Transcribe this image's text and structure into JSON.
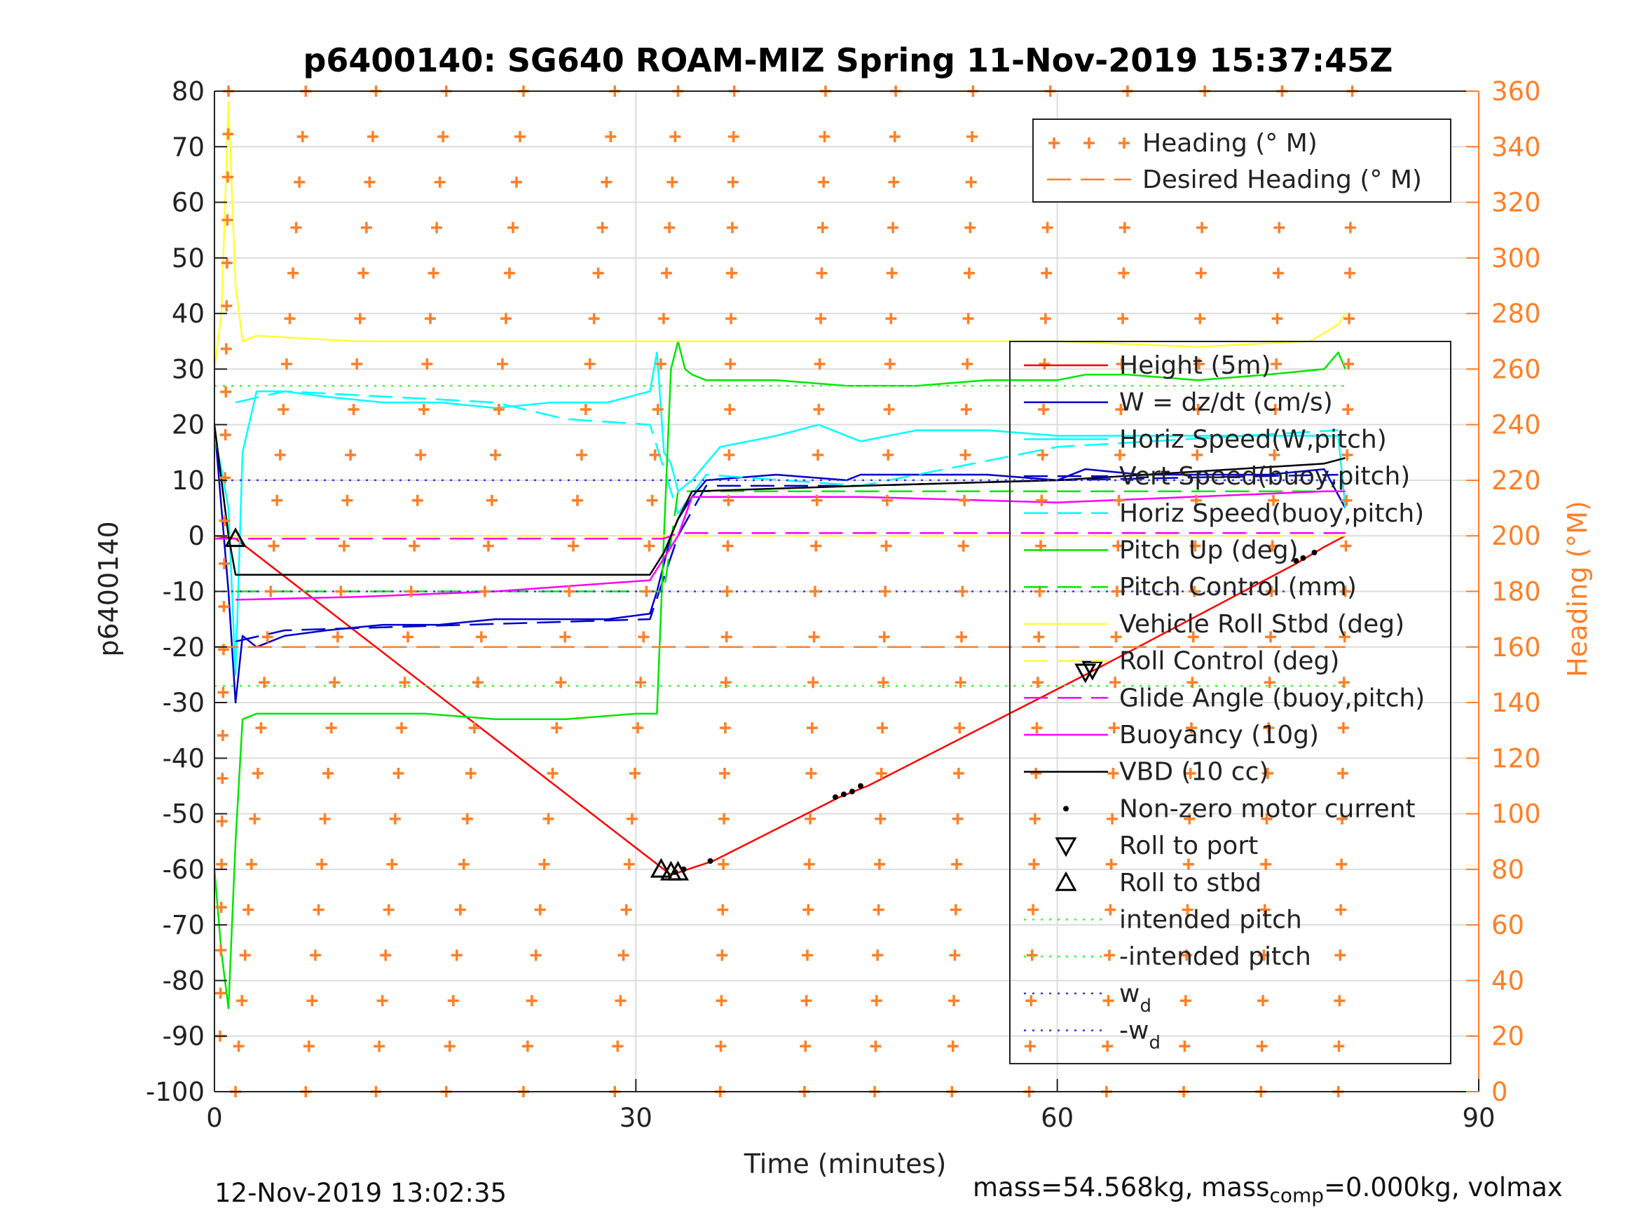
{
  "chart_data": {
    "type": "line",
    "title": "p6400140: SG640 ROAM-MIZ Spring 11-Nov-2019 15:37:45Z",
    "xlabel": "Time (minutes)",
    "ylabel": "p6400140",
    "ylabel_right": "Heading (°M)",
    "xlim": [
      0,
      90
    ],
    "ylim": [
      -100,
      80
    ],
    "ylim_right": [
      0,
      360
    ],
    "xticks": [
      0,
      30,
      60,
      90
    ],
    "yticks": [
      80,
      70,
      60,
      50,
      40,
      30,
      20,
      10,
      0,
      -10,
      -20,
      -30,
      -40,
      -50,
      -60,
      -70,
      -80,
      -90,
      -100
    ],
    "yticks_right": [
      360,
      340,
      320,
      300,
      280,
      260,
      240,
      220,
      200,
      180,
      160,
      140,
      120,
      100,
      80,
      60,
      40,
      20,
      0
    ],
    "grid": true,
    "heading_legend": {
      "placement": "top-right",
      "entries": [
        {
          "name": "Heading (° M)",
          "color": "#FF7F27",
          "marker": "+"
        },
        {
          "name": "Desired Heading (° M)",
          "color": "#FF7F27",
          "style": "dashed"
        }
      ]
    },
    "legend": {
      "placement": "right",
      "entries": [
        {
          "name": "Height (5m)",
          "color": "#FF0000",
          "style": "solid"
        },
        {
          "name": "W = dz/dt (cm/s)",
          "color": "#0000CC",
          "style": "solid"
        },
        {
          "name": "Horiz Speed(W,pitch)",
          "color": "#00FFFF",
          "style": "solid"
        },
        {
          "name": "Vert Speed(buoy,pitch)",
          "color": "#0000CC",
          "style": "dashed"
        },
        {
          "name": "Horiz Speed(buoy,pitch)",
          "color": "#00FFFF",
          "style": "dashed"
        },
        {
          "name": "Pitch Up (deg)",
          "color": "#00E600",
          "style": "solid"
        },
        {
          "name": "Pitch Control (mm)",
          "color": "#00E600",
          "style": "dashed"
        },
        {
          "name": "Vehicle Roll Stbd (deg)",
          "color": "#FFFF33",
          "style": "solid"
        },
        {
          "name": "Roll Control (deg)",
          "color": "#FFFF33",
          "style": "dashed"
        },
        {
          "name": "Glide Angle (buoy,pitch)",
          "color": "#FF00FF",
          "style": "dashed"
        },
        {
          "name": "Buoyancy (10g)",
          "color": "#FF00FF",
          "style": "solid"
        },
        {
          "name": "VBD (10 cc)",
          "color": "#000000",
          "style": "solid"
        },
        {
          "name": "Non-zero motor current",
          "color": "#000000",
          "style": "dot"
        },
        {
          "name": "Roll to port",
          "color": "#000000",
          "style": "tri-down"
        },
        {
          "name": "Roll to stbd",
          "color": "#000000",
          "style": "tri-up"
        },
        {
          "name": "intended pitch",
          "color": "#33FF33",
          "style": "dotted"
        },
        {
          "name": "-intended pitch",
          "color": "#33FF33",
          "style": "dotted"
        },
        {
          "name": "w",
          "sub": "d",
          "color": "#3333FF",
          "style": "dotted"
        },
        {
          "name": "-w",
          "sub": "d",
          "color": "#3333FF",
          "style": "dotted"
        }
      ]
    },
    "series": [
      {
        "name": "Height (5m)",
        "color": "#FF0000",
        "x": [
          0,
          1.5,
          32.5,
          35.5,
          44.5,
          46.5,
          62,
          77,
          79,
          80.5
        ],
        "y": [
          0,
          -0.5,
          -61,
          -58.5,
          -47,
          -45,
          -25,
          -5,
          -2,
          0
        ]
      },
      {
        "name": "W = dz/dt (cm/s)",
        "color": "#0000CC",
        "x": [
          0,
          0.5,
          1,
          1.5,
          2,
          3,
          5,
          8,
          12,
          16,
          20,
          24,
          28,
          31,
          31.5,
          32,
          32.5,
          33,
          34,
          35,
          40,
          45,
          46,
          50,
          55,
          60,
          62,
          66,
          70,
          75,
          79,
          80.5
        ],
        "y": [
          20,
          5,
          -10,
          -30,
          -18,
          -20,
          -18,
          -17,
          -16,
          -16,
          -15,
          -15,
          -15,
          -14,
          -10,
          -5,
          0,
          3,
          7,
          10,
          11,
          10,
          11,
          11,
          11,
          10,
          12,
          11,
          11,
          11,
          12,
          5
        ]
      },
      {
        "name": "Horiz Speed(W,pitch)",
        "color": "#00FFFF",
        "x": [
          0,
          0.5,
          1,
          1.5,
          2,
          3,
          5,
          8,
          12,
          16,
          20,
          24,
          28,
          31,
          31.5,
          32,
          32.5,
          33,
          34,
          36,
          40,
          43,
          46,
          50,
          55,
          60,
          66,
          70,
          75,
          80,
          80.5
        ],
        "y": [
          18,
          12,
          5,
          -25,
          15,
          26,
          26,
          25,
          24,
          24,
          23,
          24,
          24,
          26,
          33,
          15,
          13,
          8,
          10,
          16,
          18,
          20,
          17,
          19,
          19,
          18,
          18,
          18,
          18,
          18,
          5
        ]
      },
      {
        "name": "Vert Speed(buoy,pitch)",
        "color": "#0000CC",
        "style": "dashed",
        "x": [
          1.5,
          5,
          31,
          33,
          35,
          46,
          60,
          80
        ],
        "y": [
          -19,
          -17,
          -15,
          0,
          9,
          9,
          10,
          11
        ]
      },
      {
        "name": "Horiz Speed(buoy,pitch)",
        "color": "#00FFFF",
        "style": "dashed",
        "x": [
          1.5,
          5,
          20,
          25,
          31,
          33,
          35,
          46,
          60,
          80
        ],
        "y": [
          24,
          26,
          24,
          21,
          20,
          4,
          11,
          9,
          16,
          19
        ]
      },
      {
        "name": "Pitch Up (deg)",
        "color": "#00E600",
        "x": [
          0,
          0.5,
          1,
          1.5,
          2,
          3,
          5,
          10,
          15,
          20,
          25,
          30,
          31.5,
          32,
          32.5,
          33,
          33.5,
          34,
          35,
          40,
          45,
          50,
          55,
          60,
          62,
          65,
          70,
          75,
          79,
          80,
          80.5
        ],
        "y": [
          -60,
          -75,
          -85,
          -55,
          -33,
          -32,
          -32,
          -32,
          -32,
          -33,
          -33,
          -32,
          -32,
          0,
          30,
          35,
          30,
          29,
          28,
          28,
          27,
          27,
          28,
          28,
          29,
          29,
          28,
          29,
          30,
          33,
          30
        ]
      },
      {
        "name": "Pitch Control (mm)",
        "color": "#00E600",
        "style": "dashed",
        "x": [
          1.5,
          32,
          33,
          80.5
        ],
        "y": [
          -10,
          -10,
          8,
          8
        ]
      },
      {
        "name": "Vehicle Roll Stbd (deg)",
        "color": "#FFFF33",
        "x": [
          0,
          0.5,
          1,
          1.5,
          2,
          3,
          10,
          20,
          30,
          40,
          50,
          60,
          70,
          78,
          80,
          80.5
        ],
        "y": [
          30,
          40,
          78,
          45,
          35,
          36,
          35,
          35,
          35,
          35,
          35,
          35,
          34,
          35,
          38,
          40
        ]
      },
      {
        "name": "Roll Control (deg)",
        "color": "#FFFF33",
        "style": "dashed",
        "x": [
          0,
          80.5
        ],
        "y": [
          0,
          0
        ]
      },
      {
        "name": "Glide Angle (buoy,pitch)",
        "color": "#FF00FF",
        "style": "dashed",
        "x": [
          0,
          32,
          33,
          80.5
        ],
        "y": [
          -0.5,
          -0.5,
          0.5,
          0.5
        ]
      },
      {
        "name": "Buoyancy (10g)",
        "color": "#FF00FF",
        "x": [
          1.5,
          10,
          20,
          31,
          33,
          34,
          46,
          60,
          79,
          80.5
        ],
        "y": [
          -11.5,
          -11,
          -10,
          -8,
          0,
          7,
          7,
          6,
          8,
          8
        ]
      },
      {
        "name": "VBD (10 cc)",
        "color": "#000000",
        "x": [
          0,
          0.5,
          1,
          1.5,
          31,
          32,
          33,
          34,
          46,
          60,
          79,
          80.5
        ],
        "y": [
          20,
          10,
          0,
          -7,
          -7,
          -3,
          3,
          8,
          9,
          10,
          13,
          14
        ]
      },
      {
        "name": "intended pitch",
        "color": "#33FF33",
        "style": "dotted",
        "x": [
          0,
          80.5
        ],
        "y": [
          27,
          27
        ]
      },
      {
        "name": "-intended pitch",
        "color": "#33FF33",
        "style": "dotted",
        "x": [
          0,
          80.5
        ],
        "y": [
          -27,
          -27
        ]
      },
      {
        "name": "w_d",
        "color": "#3333FF",
        "style": "dotted",
        "x": [
          0,
          80.5
        ],
        "y": [
          10,
          10
        ]
      },
      {
        "name": "-w_d",
        "color": "#3333FF",
        "style": "dotted",
        "x": [
          0,
          80.5
        ],
        "y": [
          -10,
          -10
        ]
      },
      {
        "name": "Desired Heading (° M)",
        "color": "#FF7F27",
        "style": "dashed",
        "axis": "right",
        "x": [
          0,
          80.5
        ],
        "y": [
          160,
          160
        ]
      }
    ],
    "heading_passes": [
      {
        "x0": 0.4,
        "x1": 1.0,
        "y0": 20,
        "y1": 360
      },
      {
        "x0": 1.5,
        "x1": 6.5,
        "y0": 0,
        "y1": 360
      },
      {
        "x0": 6.5,
        "x1": 11.5,
        "y0": 0,
        "y1": 360
      },
      {
        "x0": 11.5,
        "x1": 16.5,
        "y0": 0,
        "y1": 360
      },
      {
        "x0": 16.5,
        "x1": 22.0,
        "y0": 0,
        "y1": 360
      },
      {
        "x0": 22.0,
        "x1": 28.5,
        "y0": 0,
        "y1": 360
      },
      {
        "x0": 28.5,
        "x1": 33.0,
        "y0": 0,
        "y1": 360
      },
      {
        "x0": 36.0,
        "x1": 37.0,
        "y0": 0,
        "y1": 360
      },
      {
        "x0": 42.0,
        "x1": 43.5,
        "y0": 0,
        "y1": 360
      },
      {
        "x0": 47.0,
        "x1": 48.5,
        "y0": 0,
        "y1": 360
      },
      {
        "x0": 52.5,
        "x1": 54.0,
        "y0": 0,
        "y1": 360
      },
      {
        "x0": 58.0,
        "x1": 59.5,
        "y0": 0,
        "y1": 360
      },
      {
        "x0": 63.5,
        "x1": 65.0,
        "y0": 0,
        "y1": 360
      },
      {
        "x0": 69.0,
        "x1": 70.5,
        "y0": 0,
        "y1": 360
      },
      {
        "x0": 74.5,
        "x1": 76.0,
        "y0": 0,
        "y1": 360
      },
      {
        "x0": 80.0,
        "x1": 81.0,
        "y0": 0,
        "y1": 360
      }
    ],
    "motor_current_points": [
      {
        "x": 32.8,
        "y": -60.5
      },
      {
        "x": 33.4,
        "y": -60
      },
      {
        "x": 35.3,
        "y": -58.5
      },
      {
        "x": 44.2,
        "y": -47
      },
      {
        "x": 44.8,
        "y": -46.5
      },
      {
        "x": 45.4,
        "y": -46
      },
      {
        "x": 46.0,
        "y": -45
      },
      {
        "x": 77.0,
        "y": -4.5
      },
      {
        "x": 77.5,
        "y": -4
      },
      {
        "x": 78.3,
        "y": -3
      }
    ],
    "roll_to_port": [
      {
        "x": 62.0,
        "y": -24.5
      },
      {
        "x": 62.5,
        "y": -24
      }
    ],
    "roll_to_stbd": [
      {
        "x": 1.5,
        "y": -0.5
      },
      {
        "x": 31.8,
        "y": -60
      },
      {
        "x": 32.5,
        "y": -60.5
      },
      {
        "x": 33.0,
        "y": -60.5
      }
    ]
  },
  "footer": {
    "date": "12-Nov-2019 13:02:35",
    "mass_label": "mass=54.568kg, mass",
    "mass_sub": "comp",
    "mass_rest": "=0.000kg, volmax"
  }
}
